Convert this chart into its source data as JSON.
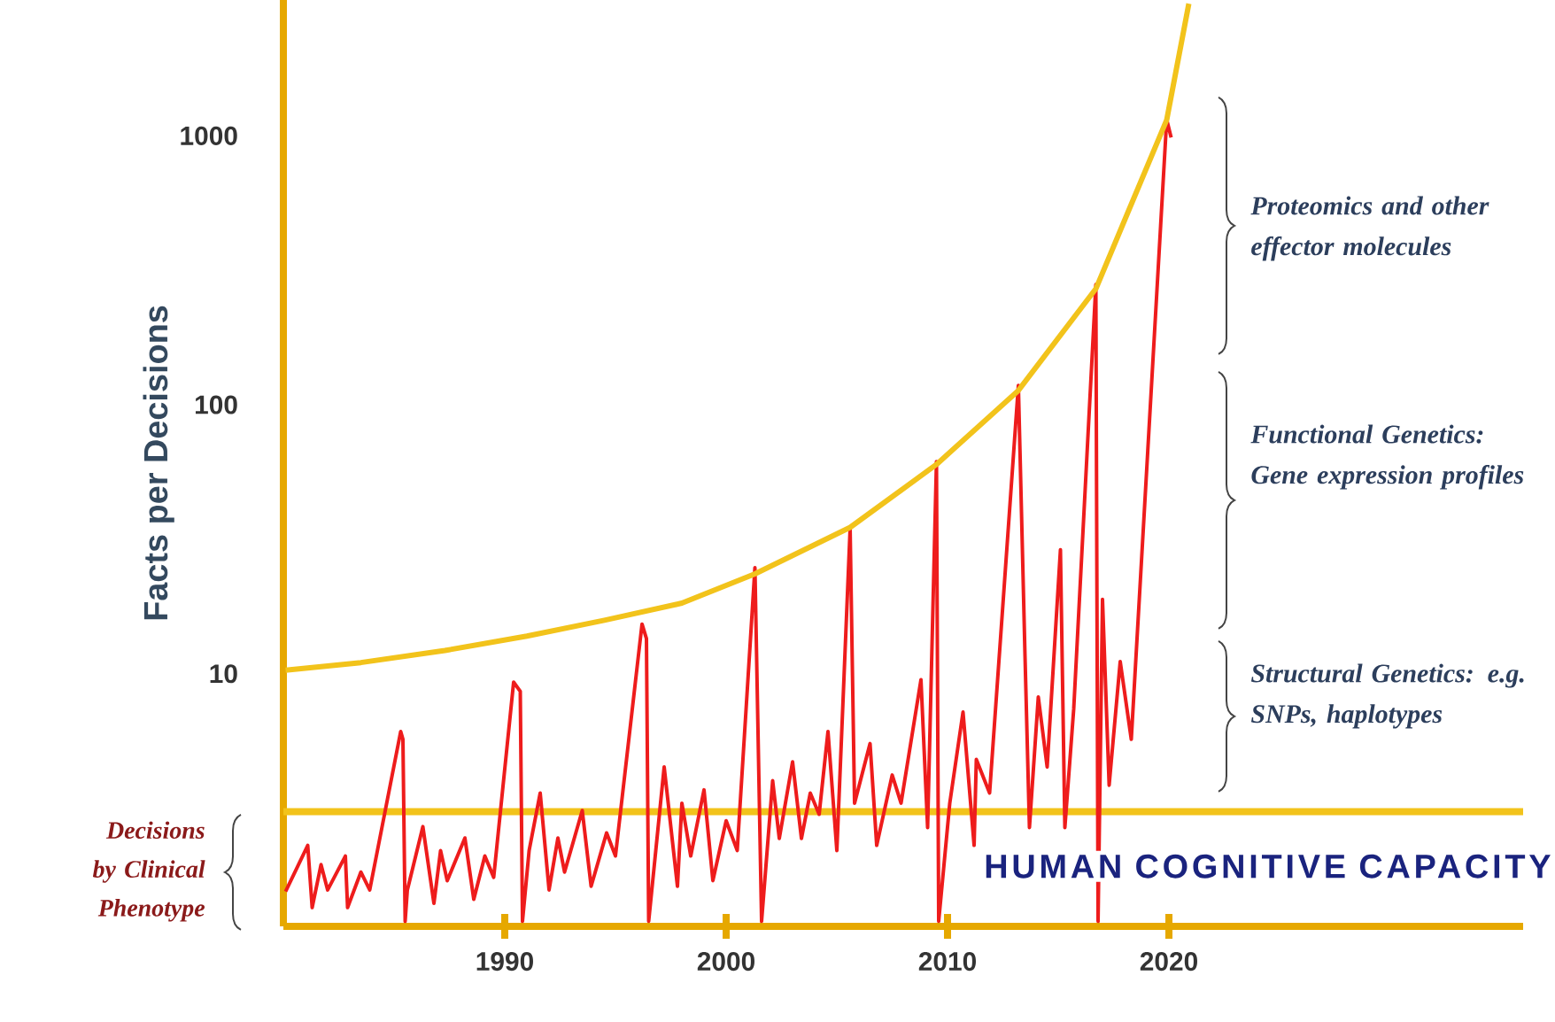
{
  "chart_data": {
    "type": "line",
    "ylabel": "Facts per Decisions",
    "log": "y",
    "xlim": [
      1980,
      2036
    ],
    "ylim": [
      1.15,
      3200
    ],
    "xticks": [
      1990,
      2000,
      2010,
      2020
    ],
    "yticks": [
      10,
      100,
      1000
    ],
    "marker": "none",
    "line_style": "solid",
    "series": [
      {
        "color": "#ee1c1c",
        "x": [
          1980.1,
          1981.1,
          1981.3,
          1981.7,
          1982.0,
          1982.8,
          1982.9,
          1983.5,
          1983.9,
          1985.3,
          1985.4,
          1985.5,
          1985.6,
          1986.3,
          1986.8,
          1987.1,
          1987.4,
          1988.2,
          1988.6,
          1989.1,
          1989.5,
          1990.4,
          1990.7,
          1990.8,
          1991.1,
          1991.6,
          1992.0,
          1992.4,
          1992.7,
          1993.5,
          1993.9,
          1994.6,
          1995.0,
          1996.2,
          1996.4,
          1996.5,
          1997.2,
          1997.8,
          1998.0,
          1998.4,
          1999.0,
          1999.4,
          2000.0,
          2000.5,
          2001.3,
          2001.6,
          2002.1,
          2002.4,
          2003.0,
          2003.4,
          2003.8,
          2004.2,
          2004.6,
          2005.0,
          2005.6,
          2005.8,
          2006.5,
          2006.8,
          2007.5,
          2007.9,
          2008.8,
          2009.1,
          2009.5,
          2009.6,
          2010.1,
          2010.7,
          2011.2,
          2011.3,
          2011.9,
          2013.2,
          2013.5,
          2013.7,
          2014.1,
          2014.5,
          2015.1,
          2015.3,
          2015.7,
          2016.7,
          2016.8,
          2017.0,
          2017.3,
          2017.8,
          2018.3,
          2019.9,
          2020.1
        ],
        "values": [
          1.55,
          2.3,
          1.35,
          1.95,
          1.57,
          2.1,
          1.35,
          1.83,
          1.57,
          6.1,
          5.7,
          1.2,
          1.57,
          2.7,
          1.4,
          2.2,
          1.7,
          2.45,
          1.45,
          2.1,
          1.75,
          9.3,
          8.6,
          1.2,
          2.2,
          3.6,
          1.57,
          2.45,
          1.83,
          3.1,
          1.62,
          2.56,
          2.1,
          15.3,
          13.5,
          1.2,
          4.5,
          1.62,
          3.3,
          2.1,
          3.7,
          1.7,
          2.84,
          2.2,
          24.8,
          1.2,
          4.0,
          2.44,
          4.7,
          2.44,
          3.6,
          3.0,
          6.1,
          2.2,
          34.6,
          3.3,
          5.5,
          2.3,
          4.2,
          3.3,
          9.5,
          2.68,
          61.5,
          1.2,
          3.3,
          7.2,
          2.3,
          4.8,
          3.6,
          118,
          11.6,
          2.68,
          8.2,
          4.5,
          28.9,
          2.68,
          7.4,
          280,
          1.2,
          18.9,
          3.85,
          11.1,
          5.7,
          1150,
          985
        ]
      },
      {
        "color": "#f2c31b",
        "x": [
          1980.1,
          1983.5,
          1987.3,
          1991.0,
          1994.5,
          1998.0,
          2001.3,
          2005.6,
          2009.5,
          2013.2,
          2016.7,
          2019.9,
          2020.9
        ],
        "values": [
          10.3,
          11.0,
          12.2,
          13.8,
          15.8,
          18.3,
          23.5,
          35,
          60,
          113,
          270,
          1146,
          3100
        ]
      }
    ],
    "ref_lines": [
      {
        "axis": "y",
        "value": 3.07,
        "label": "HUMAN COGNITIVE CAPACITY",
        "color": "#f2c31b"
      }
    ],
    "annotations": [
      "Proteomics and other effector molecules",
      "Functional Genetics: Gene expression profiles",
      "Structural Genetics: e.g. SNPs, haplotypes",
      "Decisions by Clinical Phenotype"
    ]
  }
}
